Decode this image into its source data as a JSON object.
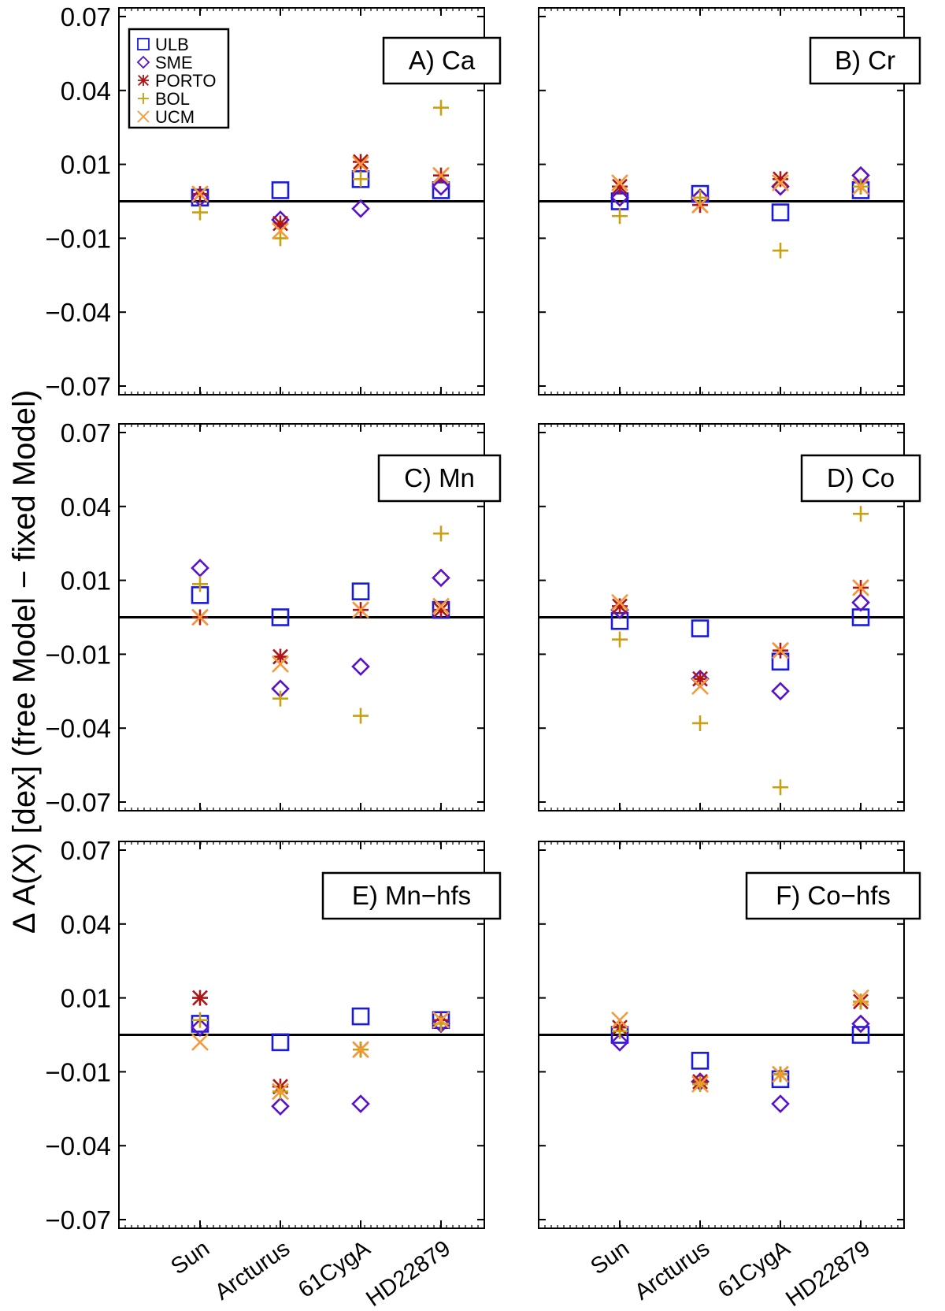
{
  "chart_data": {
    "type": "scatter",
    "ylabel": "Δ A(X) [dex] (free Model − fixed Model)",
    "categories": [
      "Sun",
      "Arcturus",
      "61CygA",
      "HD22879"
    ],
    "yticks": [
      0.07,
      0.04,
      0.01,
      -0.01,
      -0.04,
      -0.07
    ],
    "ytick_labels": [
      "0.07",
      "0.04",
      "0.01",
      "−0.01",
      "−0.04",
      "−0.07"
    ],
    "ylim": [
      -0.07,
      0.07
    ],
    "reference_line": 0.0,
    "legend": {
      "location": "top-left",
      "entries": [
        {
          "name": "ULB",
          "marker": "square",
          "color": "#1a1adf"
        },
        {
          "name": "SME",
          "marker": "diamond",
          "color": "#5a12c8"
        },
        {
          "name": "PORTO",
          "marker": "asterisk",
          "color": "#b01515"
        },
        {
          "name": "BOL",
          "marker": "plus",
          "color": "#c8a010"
        },
        {
          "name": "UCM",
          "marker": "x",
          "color": "#f59a3a"
        }
      ]
    },
    "panels": [
      {
        "label": "A) Ca",
        "series": [
          {
            "name": "ULB",
            "values": [
              0.001,
              0.003,
              0.006,
              0.003
            ]
          },
          {
            "name": "SME",
            "values": [
              0.001,
              -0.005,
              -0.002,
              0.004
            ]
          },
          {
            "name": "PORTO",
            "values": [
              0.002,
              -0.006,
              0.011,
              0.007
            ]
          },
          {
            "name": "BOL",
            "values": [
              -0.003,
              -0.01,
              0.006,
              0.033
            ]
          },
          {
            "name": "UCM",
            "values": [
              0.002,
              -0.008,
              0.01,
              0.007
            ]
          }
        ]
      },
      {
        "label": "B) Cr",
        "series": [
          {
            "name": "ULB",
            "values": [
              0.0,
              0.002,
              -0.003,
              0.003
            ]
          },
          {
            "name": "SME",
            "values": [
              0.001,
              0.001,
              0.004,
              0.007
            ]
          },
          {
            "name": "PORTO",
            "values": [
              0.004,
              -0.001,
              0.006,
              0.004
            ]
          },
          {
            "name": "BOL",
            "values": [
              -0.004,
              0.001,
              -0.015,
              0.004
            ]
          },
          {
            "name": "UCM",
            "values": [
              0.005,
              -0.001,
              0.005,
              0.004
            ]
          }
        ]
      },
      {
        "label": "C) Mn",
        "series": [
          {
            "name": "ULB",
            "values": [
              0.006,
              0.0,
              0.007,
              0.002
            ]
          },
          {
            "name": "SME",
            "values": [
              0.015,
              -0.024,
              -0.015,
              0.011
            ]
          },
          {
            "name": "PORTO",
            "values": [
              0.0,
              -0.011,
              0.002,
              0.002
            ]
          },
          {
            "name": "BOL",
            "values": [
              0.009,
              -0.028,
              -0.035,
              0.029
            ]
          },
          {
            "name": "UCM",
            "values": [
              0.0,
              -0.014,
              0.002,
              0.003
            ]
          }
        ]
      },
      {
        "label": "D) Co",
        "series": [
          {
            "name": "ULB",
            "values": [
              -0.001,
              -0.003,
              -0.013,
              0.0
            ]
          },
          {
            "name": "SME",
            "values": [
              0.002,
              -0.02,
              -0.025,
              0.004
            ]
          },
          {
            "name": "PORTO",
            "values": [
              0.003,
              -0.02,
              -0.009,
              0.008
            ]
          },
          {
            "name": "BOL",
            "values": [
              -0.006,
              -0.038,
              -0.064,
              0.037
            ]
          },
          {
            "name": "UCM",
            "values": [
              0.004,
              -0.023,
              -0.009,
              0.008
            ]
          }
        ]
      },
      {
        "label": "E) Mn−hfs",
        "series": [
          {
            "name": "ULB",
            "values": [
              0.003,
              -0.002,
              0.005,
              0.004
            ]
          },
          {
            "name": "SME",
            "values": [
              0.002,
              -0.024,
              -0.023,
              0.003
            ]
          },
          {
            "name": "PORTO",
            "values": [
              0.01,
              -0.016,
              -0.004,
              0.004
            ]
          },
          {
            "name": "BOL",
            "values": [
              0.004,
              -0.018,
              -0.004,
              0.003
            ]
          },
          {
            "name": "UCM",
            "values": [
              -0.002,
              -0.018,
              -0.004,
              0.004
            ]
          }
        ]
      },
      {
        "label": "F) Co−hfs",
        "series": [
          {
            "name": "ULB",
            "values": [
              0.0,
              -0.007,
              -0.013,
              0.0
            ]
          },
          {
            "name": "SME",
            "values": [
              -0.002,
              -0.014,
              -0.023,
              0.003
            ]
          },
          {
            "name": "PORTO",
            "values": [
              0.002,
              -0.014,
              -0.011,
              0.009
            ]
          },
          {
            "name": "BOL",
            "values": [
              0.001,
              -0.015,
              -0.011,
              0.009
            ]
          },
          {
            "name": "UCM",
            "values": [
              0.004,
              -0.015,
              -0.011,
              0.01
            ]
          }
        ]
      }
    ]
  }
}
